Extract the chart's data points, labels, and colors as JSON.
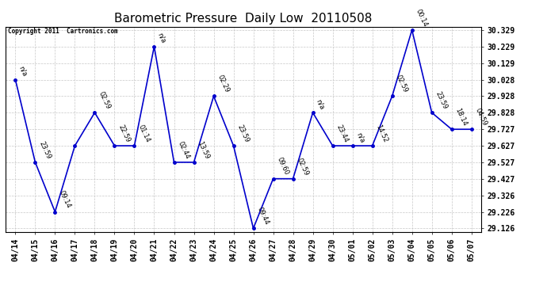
{
  "title": "Barometric Pressure  Daily Low  20110508",
  "copyright": "Copyright 2011  Cartronics.com",
  "x_labels": [
    "04/14",
    "04/15",
    "04/16",
    "04/17",
    "04/18",
    "04/19",
    "04/20",
    "04/21",
    "04/22",
    "04/23",
    "04/24",
    "04/25",
    "04/26",
    "04/27",
    "04/28",
    "04/29",
    "04/30",
    "05/01",
    "05/02",
    "05/03",
    "05/04",
    "05/05",
    "05/06",
    "05/07"
  ],
  "y_values": [
    30.028,
    29.527,
    29.226,
    29.627,
    29.828,
    29.627,
    29.627,
    30.229,
    29.527,
    29.527,
    29.928,
    29.627,
    29.126,
    29.427,
    29.427,
    29.828,
    29.627,
    29.627,
    29.627,
    29.928,
    30.329,
    29.828,
    29.727,
    29.727
  ],
  "point_labels": [
    "n/a",
    "23:59",
    "09:14",
    "",
    "02:59",
    "22:59",
    "01:14",
    "n/a",
    "02:44",
    "13:59",
    "02:29",
    "23:59",
    "09:44",
    "09:60",
    "02:59",
    "n/a",
    "23:44",
    "n/a",
    "14:52",
    "02:59",
    "00:14",
    "23:59",
    "18:14",
    "04:59"
  ],
  "y_min": 29.126,
  "y_max": 30.329,
  "y_ticks": [
    29.126,
    29.226,
    29.326,
    29.427,
    29.527,
    29.627,
    29.727,
    29.828,
    29.928,
    30.028,
    30.129,
    30.229,
    30.329
  ],
  "line_color": "#0000cc",
  "marker_color": "#0000cc",
  "bg_color": "#ffffff",
  "grid_color": "#c8c8c8",
  "title_fontsize": 11,
  "label_fontsize": 7,
  "point_label_fontsize": 6
}
